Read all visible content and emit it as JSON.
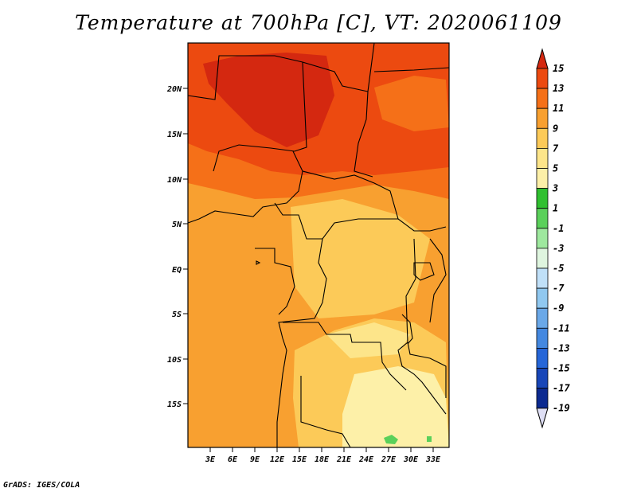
{
  "title": "Temperature at 700hPa [C], VT: 2020061109",
  "credit": "GrADS: IGES/COLA",
  "colors": {
    "map_fill_darkest": "#d42810",
    "map_fill_dark": "#ec4a10",
    "map_fill_orange": "#f8a030",
    "map_fill_light": "#fcca58",
    "map_fill_pale": "#fdf0a8",
    "land_green": "#5ad05a",
    "border_line": "#000000"
  },
  "map": {
    "lat_labels": [
      "20N",
      "15N",
      "10N",
      "5N",
      "EQ",
      "5S",
      "10S",
      "15S"
    ],
    "lon_labels": [
      "3E",
      "6E",
      "9E",
      "12E",
      "15E",
      "18E",
      "21E",
      "24E",
      "27E",
      "30E",
      "33E"
    ]
  },
  "colorbar": {
    "labels": [
      "15",
      "13",
      "11",
      "9",
      "7",
      "5",
      "3",
      "1",
      "-1",
      "-3",
      "-5",
      "-7",
      "-9",
      "-11",
      "-13",
      "-15",
      "-17",
      "-19"
    ],
    "colors": [
      "#d42810",
      "#ec4a10",
      "#f57018",
      "#f8a030",
      "#fcca58",
      "#fde58a",
      "#fdf0a8",
      "#30c030",
      "#5ad05a",
      "#9ee89e",
      "#dff5df",
      "#c0e0f8",
      "#90c8f0",
      "#6aa8e8",
      "#4488e0",
      "#2666d8",
      "#1846b8",
      "#0c2a90",
      "#06106a"
    ]
  }
}
